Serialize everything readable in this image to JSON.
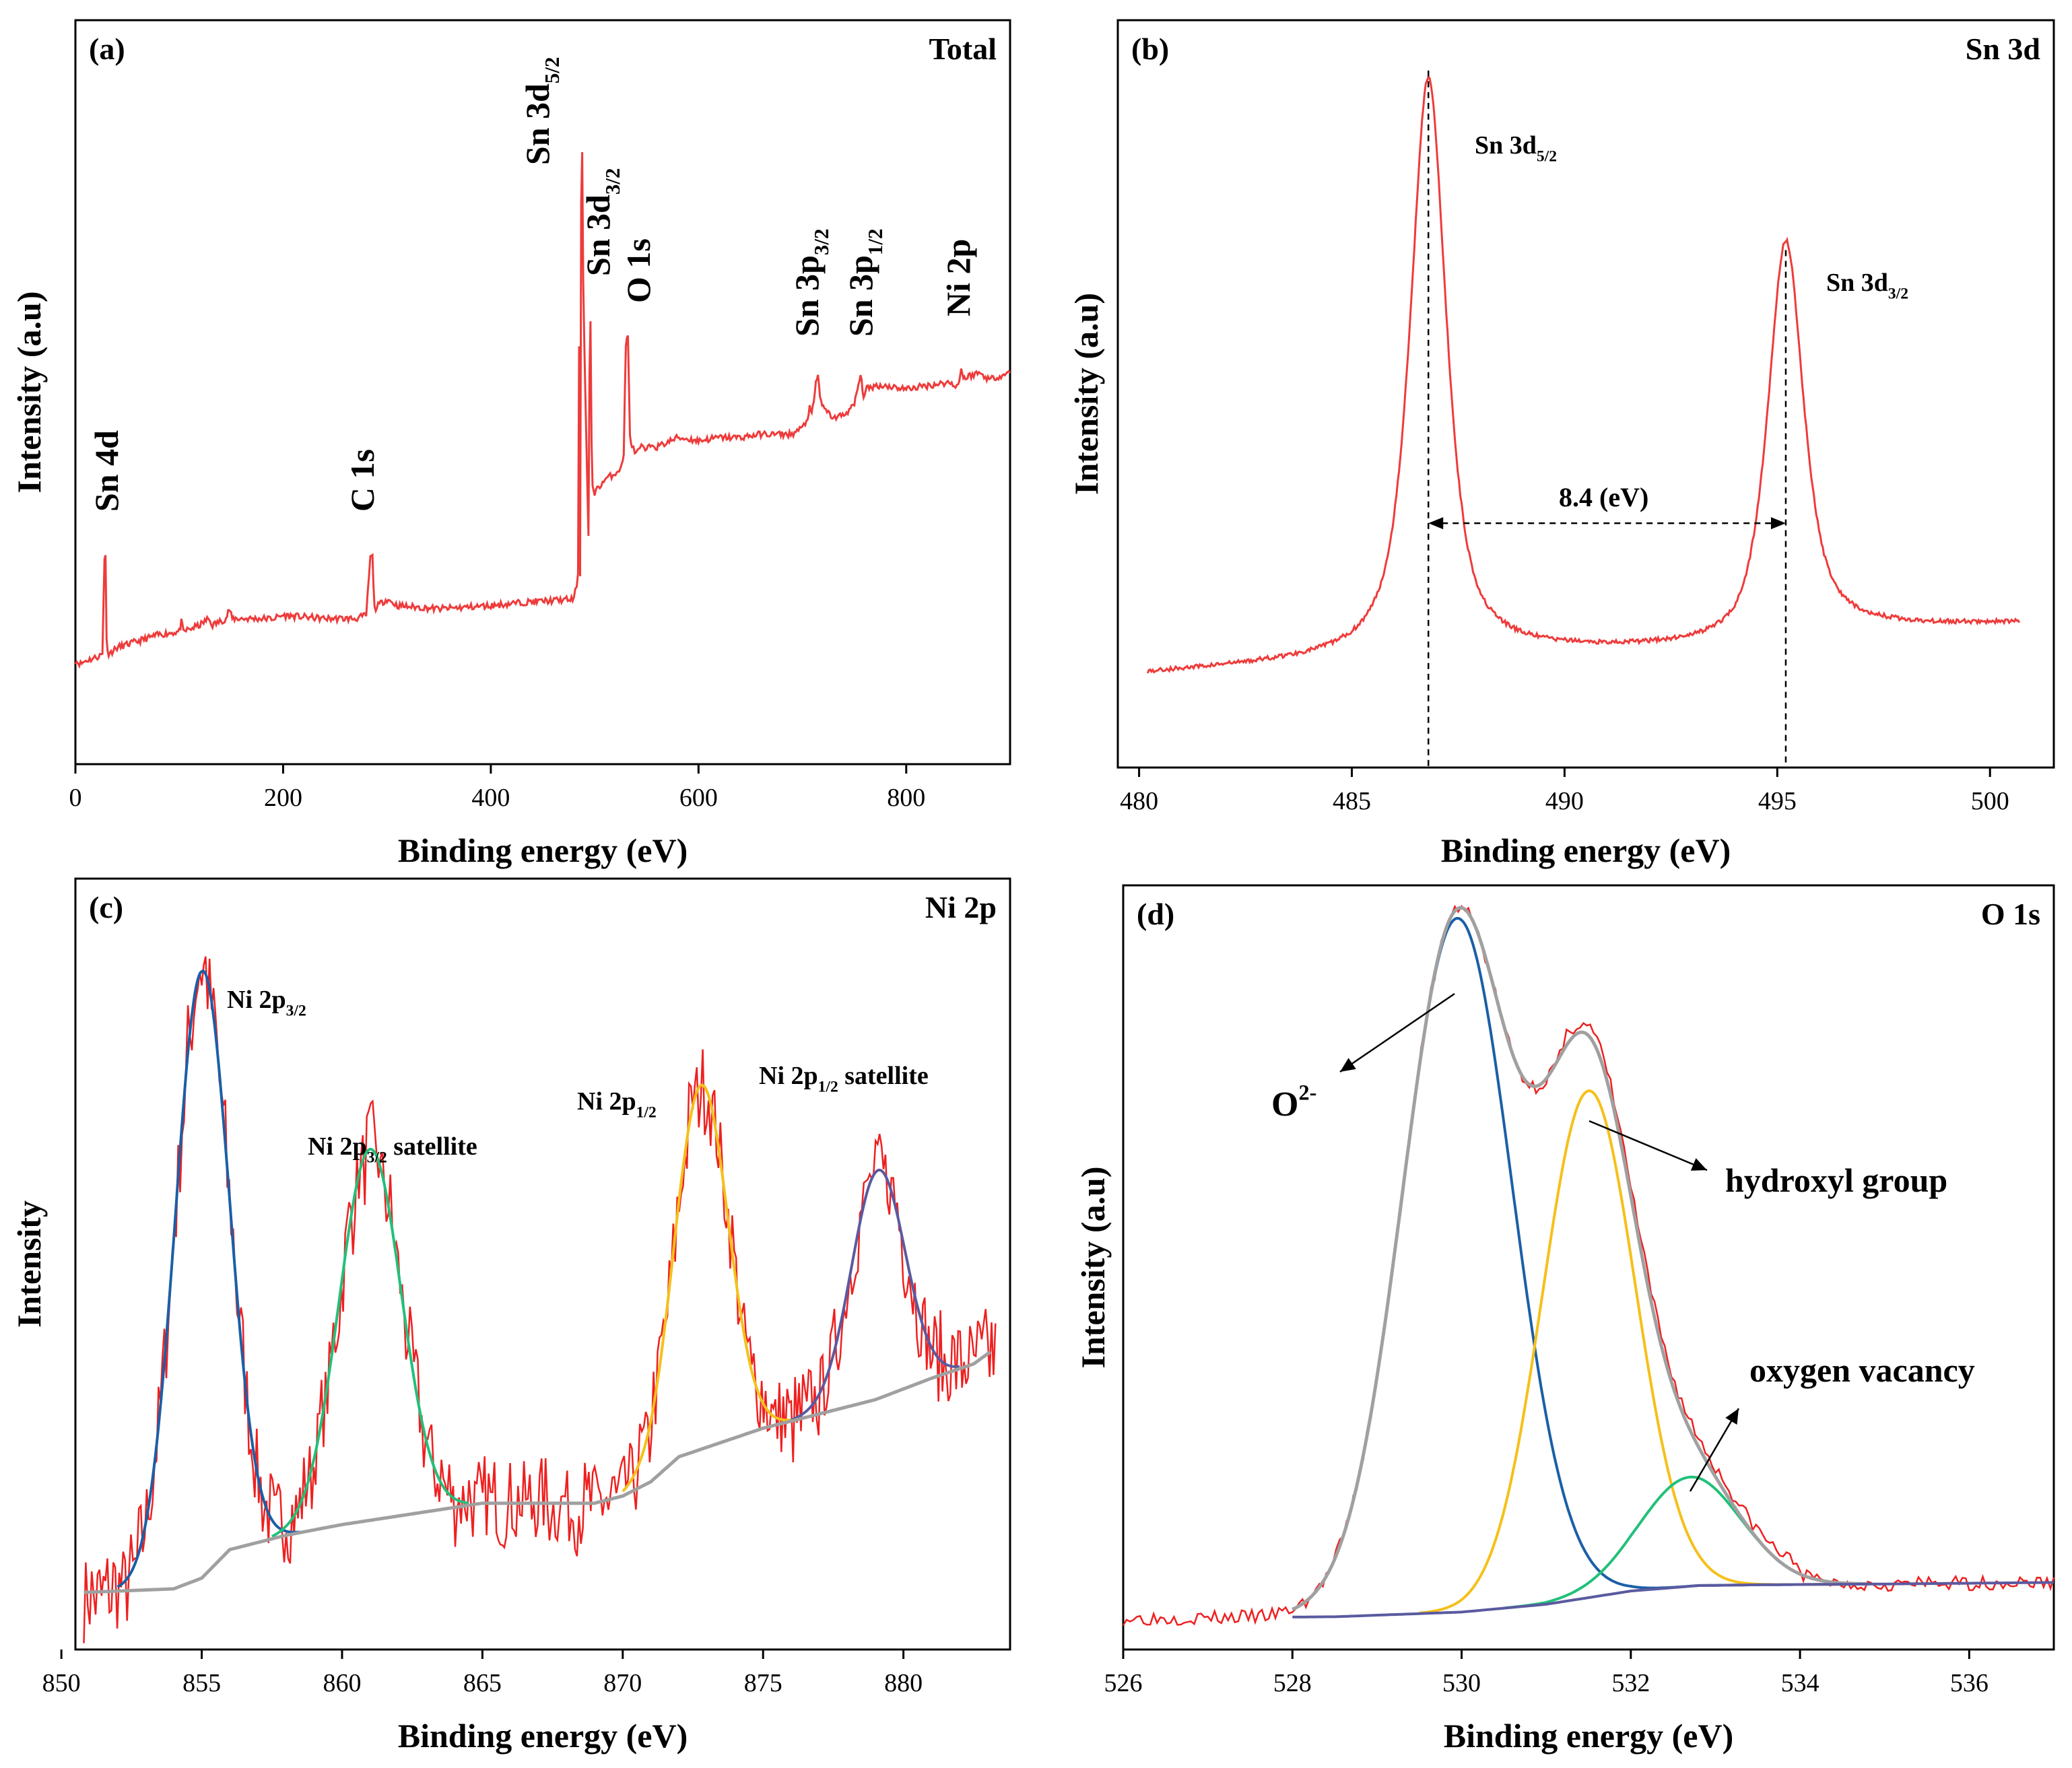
{
  "chart_data": [
    {
      "id": "a",
      "type": "line",
      "panel_label": "(a)",
      "title": "Total",
      "xlabel": "Binding energy (eV)",
      "ylabel": "Intensity (a.u)",
      "xlim": [
        0,
        900
      ],
      "xticks": [
        0,
        200,
        400,
        600,
        800
      ],
      "ylim": [
        0,
        100
      ],
      "series": [
        {
          "name": "survey",
          "color": "#ee3b3b",
          "noise": 0.5,
          "points": [
            [
              0,
              11
            ],
            [
              5,
              10.5
            ],
            [
              10,
              11
            ],
            [
              20,
              11.5
            ],
            [
              26,
              12
            ],
            [
              28,
              27
            ],
            [
              29,
              27.5
            ],
            [
              30,
              14
            ],
            [
              32,
              12
            ],
            [
              40,
              13
            ],
            [
              60,
              14
            ],
            [
              80,
              15
            ],
            [
              100,
              15.5
            ],
            [
              102,
              17
            ],
            [
              104,
              15.5
            ],
            [
              120,
              16.5
            ],
            [
              128,
              17.5
            ],
            [
              132,
              16.5
            ],
            [
              145,
              17.5
            ],
            [
              148,
              19
            ],
            [
              151,
              17.5
            ],
            [
              160,
              17.5
            ],
            [
              190,
              17.5
            ],
            [
              200,
              18
            ],
            [
              240,
              17.5
            ],
            [
              270,
              17.5
            ],
            [
              280,
              18
            ],
            [
              284,
              27
            ],
            [
              286,
              27
            ],
            [
              288,
              19
            ],
            [
              295,
              20
            ],
            [
              300,
              20.5
            ],
            [
              310,
              19.5
            ],
            [
              350,
              19
            ],
            [
              400,
              19.5
            ],
            [
              430,
              20
            ],
            [
              480,
              20.5
            ],
            [
              484,
              24
            ],
            [
              485,
              60
            ],
            [
              486,
              24
            ],
            [
              487,
              82
            ],
            [
              488,
              90
            ],
            [
              489,
              70
            ],
            [
              490,
              60
            ],
            [
              492,
              45
            ],
            [
              494,
              30
            ],
            [
              495,
              55
            ],
            [
              496,
              63
            ],
            [
              497,
              45
            ],
            [
              498,
              38
            ],
            [
              500,
              37
            ],
            [
              505,
              38
            ],
            [
              510,
              39
            ],
            [
              515,
              39.5
            ],
            [
              520,
              40
            ],
            [
              526,
              41
            ],
            [
              528,
              43
            ],
            [
              530,
              60
            ],
            [
              532,
              61
            ],
            [
              534,
              46
            ],
            [
              536,
              44
            ],
            [
              540,
              43
            ],
            [
              545,
              44
            ],
            [
              550,
              43.5
            ],
            [
              555,
              44.5
            ],
            [
              560,
              44
            ],
            [
              580,
              45.5
            ],
            [
              600,
              45
            ],
            [
              620,
              45.5
            ],
            [
              640,
              45.5
            ],
            [
              660,
              46
            ],
            [
              690,
              46
            ],
            [
              700,
              47
            ],
            [
              704,
              48
            ],
            [
              707,
              50
            ],
            [
              709,
              49
            ],
            [
              711,
              51
            ],
            [
              713,
              54
            ],
            [
              715,
              55
            ],
            [
              717,
              52
            ],
            [
              720,
              50
            ],
            [
              730,
              48.5
            ],
            [
              740,
              49
            ],
            [
              750,
              50.5
            ],
            [
              753,
              53
            ],
            [
              756,
              55
            ],
            [
              759,
              52
            ],
            [
              762,
              53
            ],
            [
              770,
              53.5
            ],
            [
              780,
              53.5
            ],
            [
              800,
              53
            ],
            [
              820,
              53.5
            ],
            [
              840,
              54
            ],
            [
              850,
              53.5
            ],
            [
              853,
              56
            ],
            [
              855,
              55
            ],
            [
              857,
              54.5
            ],
            [
              860,
              55
            ],
            [
              870,
              55.5
            ],
            [
              880,
              54.5
            ],
            [
              890,
              55
            ],
            [
              900,
              55.5
            ]
          ]
        }
      ],
      "annotations": [
        {
          "text": "Sn 4d",
          "x": 27,
          "y": 0,
          "rotate": true
        },
        {
          "text": "C 1s",
          "x": 285,
          "y": 0,
          "rotate": true
        },
        {
          "text": "Sn 3d",
          "sub": "5/2",
          "x": 490,
          "y": 0,
          "rotate": true
        },
        {
          "text": "Sn 3d",
          "sub": "3/2",
          "x": 500,
          "y": 0,
          "rotate": true
        },
        {
          "text": "O 1s",
          "x": 531,
          "y": 0,
          "rotate": true
        },
        {
          "text": "Sn 3p",
          "sub": "3/2",
          "x": 715,
          "y": 0,
          "rotate": true
        },
        {
          "text": "Sn 3p",
          "sub": "1/2",
          "x": 758,
          "y": 0,
          "rotate": true
        },
        {
          "text": "Ni 2p",
          "x": 855,
          "y": 0,
          "rotate": true
        }
      ]
    },
    {
      "id": "b",
      "type": "line",
      "panel_label": "(b)",
      "title": "Sn 3d",
      "xlabel": "Binding energy (eV)",
      "ylabel": "Intensity (a.u)",
      "xlim": [
        479.5,
        501.5
      ],
      "xticks": [
        480,
        485,
        490,
        495,
        500
      ],
      "ylim": [
        0,
        100
      ],
      "series": [
        {
          "name": "Sn 3d",
          "color": "#ee3b3b",
          "noise": 0.3,
          "peaks": [
            {
              "center": 486.8,
              "amp": 80,
              "sigma": 0.42,
              "frac": 0.7
            },
            {
              "center": 495.2,
              "amp": 55,
              "sigma": 0.42,
              "frac": 0.7
            }
          ],
          "baseline_x": [
            480,
            485,
            486,
            489,
            494,
            495,
            496,
            500.7
          ],
          "baseline_y": [
            9,
            11,
            12,
            12,
            12.5,
            14,
            15,
            16
          ],
          "x_range": [
            480.2,
            500.7
          ]
        }
      ],
      "annotations": [
        {
          "text": "Sn 3d",
          "sub": "5/2",
          "x": 487.8,
          "y": 88
        },
        {
          "text": "Sn 3d",
          "sub": "3/2",
          "x": 495.8,
          "y": 63
        },
        {
          "text": "8.4 (eV)",
          "x": 491,
          "y": 35
        }
      ],
      "peak_markers": [
        486.8,
        495.2
      ],
      "splitting_y": 30,
      "splitting_label": "8.4 (eV)"
    },
    {
      "id": "c",
      "type": "line",
      "panel_label": "(c)",
      "title": "Ni 2p",
      "xlabel": "Binding energy (eV)",
      "ylabel": "Intensity",
      "xlim": [
        850.5,
        883.8
      ],
      "xticks": [
        850,
        855,
        860,
        865,
        870,
        875,
        880
      ],
      "ylim": [
        0,
        100
      ],
      "background": {
        "x": [
          850.8,
          854,
          855,
          856,
          858,
          860,
          865,
          869,
          870,
          871,
          872,
          875,
          879,
          881,
          882.5,
          883.2
        ],
        "y": [
          6,
          6.5,
          8,
          12,
          14,
          15.5,
          18.5,
          18.5,
          19.5,
          21.5,
          25,
          29,
          33,
          36,
          38,
          40
        ]
      },
      "series": [
        {
          "name": "raw",
          "color": "#ee2020",
          "noise": 6,
          "seed": 7
        },
        {
          "name": "Ni 2p3/2 fit",
          "color": "#1b5fa7",
          "center": 855.0,
          "amp": 85,
          "sigma": 0.95,
          "x_range": [
            852,
            858.5
          ]
        },
        {
          "name": "Ni 2p3/2 satellite fit",
          "color": "#22c07a",
          "center": 861.0,
          "amp": 52,
          "sigma": 1.1,
          "x_range": [
            857.5,
            864.5
          ]
        },
        {
          "name": "Ni 2p1/2 fit",
          "color": "#f5c01a",
          "center": 872.8,
          "amp": 51,
          "sigma": 0.95,
          "x_range": [
            870,
            876
          ]
        },
        {
          "name": "Ni 2p1/2 satellite fit",
          "color": "#5a5aa0",
          "center": 879.1,
          "amp": 32,
          "sigma": 0.95,
          "x_range": [
            876,
            882
          ]
        },
        {
          "name": "background",
          "color": "#a0a0a0"
        }
      ],
      "annotations": [
        {
          "text": "Ni 2p",
          "sub": "3/2",
          "x": 856.2,
          "y": 92
        },
        {
          "text": "Ni 2p",
          "sub": "3/2",
          "tail": " satellite",
          "x": 860.2,
          "y": 67
        },
        {
          "text": "Ni 2p",
          "sub": "1/2",
          "x": 869.1,
          "y": 74
        },
        {
          "text": "Ni 2p",
          "sub": "1/2",
          "tail": " satellite",
          "x": 874.9,
          "y": 80
        }
      ]
    },
    {
      "id": "d",
      "type": "line",
      "panel_label": "(d)",
      "title": "O 1s",
      "xlabel": "Binding energy (eV)",
      "ylabel": "Intensity (a.u)",
      "xlim": [
        526,
        537
      ],
      "xticks": [
        526,
        528,
        530,
        532,
        534,
        536
      ],
      "ylim": [
        0,
        100
      ],
      "background": {
        "x": [
          526,
          528.5,
          530,
          531,
          532,
          532.8,
          533.5,
          535,
          537
        ],
        "y": [
          8,
          8.2,
          8.8,
          9.8,
          11.5,
          12.2,
          12.3,
          12.4,
          12.6
        ]
      },
      "series": [
        {
          "name": "raw",
          "color": "#ee2020",
          "noise": 0.9
        },
        {
          "name": "O2- fit",
          "color": "#1b5fa7",
          "center": 529.95,
          "amp": 89,
          "sigma": 0.65,
          "x_range": [
            528,
            534.5
          ]
        },
        {
          "name": "hydroxyl group fit",
          "color": "#f5c01a",
          "center": 531.5,
          "amp": 65,
          "sigma": 0.55,
          "x_range": [
            529.5,
            534.5
          ]
        },
        {
          "name": "oxygen vacancy fit",
          "color": "#22c07a",
          "center": 532.7,
          "amp": 14,
          "sigma": 0.6,
          "x_range": [
            530.5,
            534.8
          ]
        },
        {
          "name": "envelope",
          "color": "#a0a0a0",
          "x_range": [
            528,
            534.8
          ]
        },
        {
          "name": "background",
          "color": "#5a5aa0",
          "x_range": [
            528,
            537
          ]
        }
      ],
      "annotations": [
        {
          "text": "O",
          "sup": "2-",
          "x": 527.7,
          "y": 79
        },
        {
          "text": "hydroxyl group",
          "x": 532.4,
          "y": 67
        },
        {
          "text": "oxygen vacancy",
          "x": 533.2,
          "y": 36
        }
      ]
    }
  ]
}
